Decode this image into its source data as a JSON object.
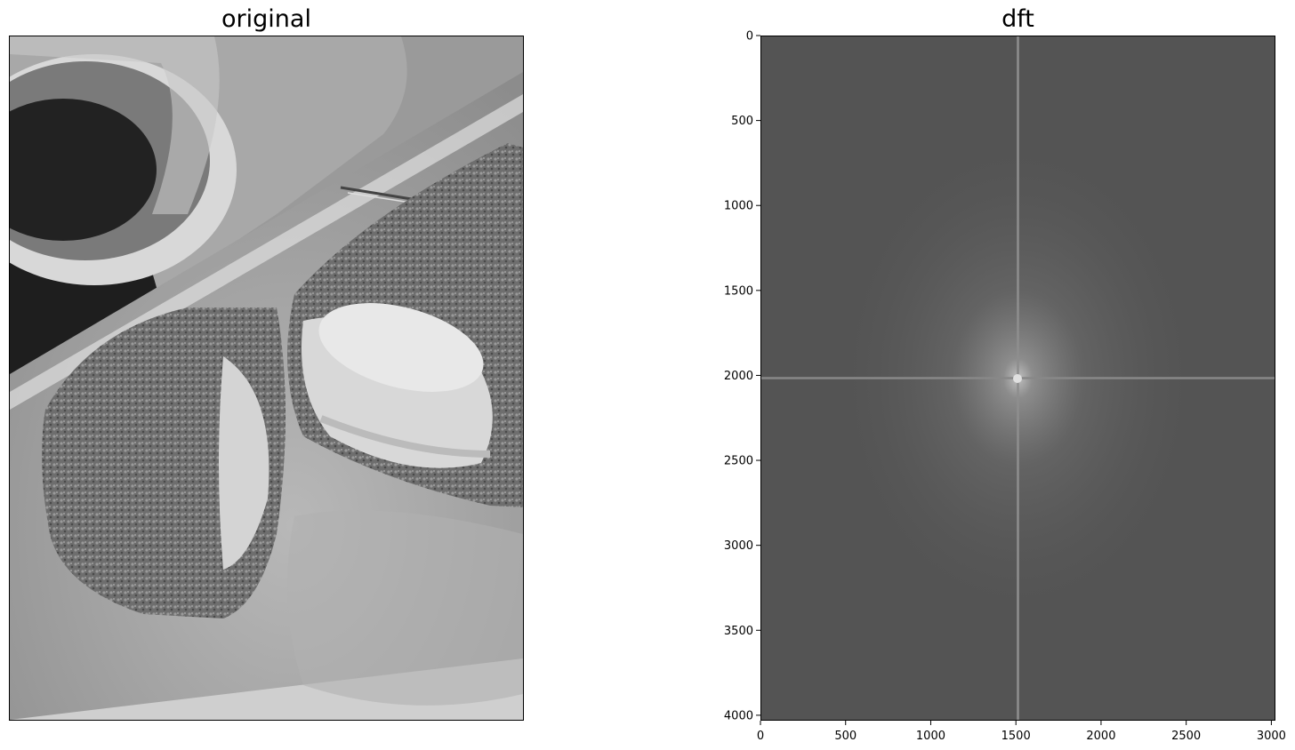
{
  "panels": {
    "left": {
      "title": "original"
    },
    "right": {
      "title": "dft"
    }
  },
  "chart_data": [
    {
      "type": "image",
      "title": "original",
      "axes_visible": false
    },
    {
      "type": "heatmap",
      "title": "dft",
      "xlabel": "",
      "ylabel": "",
      "xlim": [
        0,
        3024
      ],
      "ylim": [
        4032,
        0
      ],
      "xticks": [
        0,
        500,
        1000,
        1500,
        2000,
        2500,
        3000
      ],
      "yticks": [
        0,
        500,
        1000,
        1500,
        2000,
        2500,
        3000,
        3500,
        4000
      ],
      "colormap": "gray",
      "center": [
        1512,
        2016
      ],
      "grid": false
    }
  ]
}
